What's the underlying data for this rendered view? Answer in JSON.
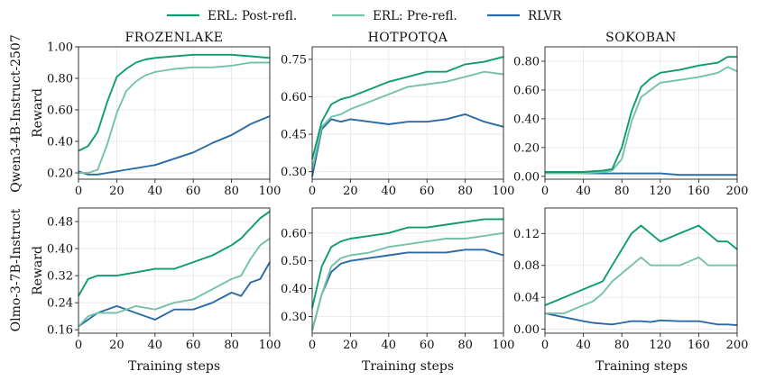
{
  "legend": [
    {
      "label": "ERL: Post-refl.",
      "color": "#0f9b72"
    },
    {
      "label": "ERL: Pre-refl.",
      "color": "#74c3a5"
    },
    {
      "label": "RLVR",
      "color": "#2b6aa6"
    }
  ],
  "columns": [
    "FROZENLAKE",
    "HOTPOTQA",
    "SOKOBAN"
  ],
  "rows": [
    "Qwen3-4B-Instruct-2507",
    "Olmo-3-7B-Instruct"
  ],
  "xlabel": "Training steps",
  "ylabel": "Reward",
  "chart_data": [
    {
      "type": "line",
      "row": 0,
      "col": 0,
      "title": "FROZENLAKE",
      "xlabel": "",
      "ylabel": "Reward",
      "xlim": [
        0,
        100
      ],
      "ylim": [
        0.16,
        1.0
      ],
      "xticks": [
        0,
        20,
        40,
        60,
        80,
        100
      ],
      "yticks": [
        0.2,
        0.4,
        0.6,
        0.8,
        1.0
      ],
      "ytick_labels": [
        "0.20",
        "0.40",
        "0.60",
        "0.80",
        "1.00"
      ],
      "x": [
        0,
        5,
        10,
        15,
        20,
        25,
        30,
        35,
        40,
        50,
        60,
        70,
        80,
        90,
        100
      ],
      "series": [
        {
          "name": "ERL: Post-refl.",
          "values": [
            0.34,
            0.37,
            0.46,
            0.65,
            0.81,
            0.86,
            0.9,
            0.92,
            0.93,
            0.94,
            0.95,
            0.95,
            0.95,
            0.94,
            0.93
          ]
        },
        {
          "name": "ERL: Pre-refl.",
          "values": [
            0.2,
            0.2,
            0.22,
            0.38,
            0.58,
            0.72,
            0.78,
            0.82,
            0.84,
            0.86,
            0.87,
            0.87,
            0.88,
            0.9,
            0.9
          ]
        },
        {
          "name": "RLVR",
          "values": [
            0.21,
            0.19,
            0.19,
            0.2,
            0.21,
            0.22,
            0.23,
            0.24,
            0.25,
            0.29,
            0.33,
            0.39,
            0.44,
            0.51,
            0.56
          ]
        }
      ]
    },
    {
      "type": "line",
      "row": 0,
      "col": 1,
      "title": "HOTPOTQA",
      "xlabel": "",
      "ylabel": "",
      "xlim": [
        0,
        100
      ],
      "ylim": [
        0.27,
        0.8
      ],
      "xticks": [
        0,
        20,
        40,
        60,
        80,
        100
      ],
      "yticks": [
        0.3,
        0.45,
        0.6,
        0.75
      ],
      "ytick_labels": [
        "0.30",
        "0.45",
        "0.60",
        "0.75"
      ],
      "x": [
        0,
        5,
        10,
        15,
        20,
        30,
        40,
        50,
        60,
        70,
        80,
        90,
        100
      ],
      "series": [
        {
          "name": "ERL: Post-refl.",
          "values": [
            0.35,
            0.5,
            0.57,
            0.59,
            0.6,
            0.63,
            0.66,
            0.68,
            0.7,
            0.7,
            0.73,
            0.74,
            0.76
          ]
        },
        {
          "name": "ERL: Pre-refl.",
          "values": [
            0.31,
            0.48,
            0.52,
            0.53,
            0.55,
            0.58,
            0.61,
            0.64,
            0.65,
            0.66,
            0.68,
            0.7,
            0.69
          ]
        },
        {
          "name": "RLVR",
          "values": [
            0.28,
            0.47,
            0.51,
            0.5,
            0.51,
            0.5,
            0.49,
            0.5,
            0.5,
            0.51,
            0.53,
            0.5,
            0.48
          ]
        }
      ]
    },
    {
      "type": "line",
      "row": 0,
      "col": 2,
      "title": "SOKOBAN",
      "xlabel": "",
      "ylabel": "",
      "xlim": [
        0,
        200
      ],
      "ylim": [
        -0.02,
        0.9
      ],
      "xticks": [
        0,
        40,
        80,
        120,
        160,
        200
      ],
      "yticks": [
        0.0,
        0.2,
        0.4,
        0.6,
        0.8
      ],
      "ytick_labels": [
        "0.00",
        "0.20",
        "0.40",
        "0.60",
        "0.80"
      ],
      "x": [
        0,
        20,
        40,
        60,
        70,
        80,
        90,
        100,
        110,
        120,
        140,
        160,
        180,
        190,
        200
      ],
      "series": [
        {
          "name": "ERL: Post-refl.",
          "values": [
            0.03,
            0.03,
            0.03,
            0.04,
            0.05,
            0.2,
            0.45,
            0.62,
            0.68,
            0.72,
            0.74,
            0.77,
            0.79,
            0.83,
            0.83
          ]
        },
        {
          "name": "ERL: Pre-refl.",
          "values": [
            0.02,
            0.02,
            0.02,
            0.03,
            0.04,
            0.12,
            0.38,
            0.55,
            0.6,
            0.65,
            0.67,
            0.69,
            0.72,
            0.76,
            0.73
          ]
        },
        {
          "name": "RLVR",
          "values": [
            0.02,
            0.02,
            0.02,
            0.02,
            0.02,
            0.02,
            0.02,
            0.02,
            0.02,
            0.02,
            0.01,
            0.01,
            0.01,
            0.01,
            0.01
          ]
        }
      ]
    },
    {
      "type": "line",
      "row": 1,
      "col": 0,
      "title": "",
      "xlabel": "Training steps",
      "ylabel": "Reward",
      "xlim": [
        0,
        100
      ],
      "ylim": [
        0.15,
        0.52
      ],
      "xticks": [
        0,
        20,
        40,
        60,
        80,
        100
      ],
      "yticks": [
        0.16,
        0.24,
        0.32,
        0.4,
        0.48
      ],
      "ytick_labels": [
        "0.16",
        "0.24",
        "0.32",
        "0.40",
        "0.48"
      ],
      "x": [
        0,
        5,
        10,
        20,
        30,
        40,
        50,
        60,
        70,
        80,
        85,
        90,
        95,
        100
      ],
      "series": [
        {
          "name": "ERL: Post-refl.",
          "values": [
            0.26,
            0.31,
            0.32,
            0.32,
            0.33,
            0.34,
            0.34,
            0.36,
            0.38,
            0.41,
            0.43,
            0.46,
            0.49,
            0.51
          ]
        },
        {
          "name": "ERL: Pre-refl.",
          "values": [
            0.17,
            0.2,
            0.21,
            0.21,
            0.23,
            0.22,
            0.24,
            0.25,
            0.28,
            0.31,
            0.32,
            0.37,
            0.41,
            0.43
          ]
        },
        {
          "name": "RLVR",
          "values": [
            0.17,
            0.19,
            0.21,
            0.23,
            0.21,
            0.19,
            0.22,
            0.22,
            0.24,
            0.27,
            0.26,
            0.3,
            0.31,
            0.36
          ]
        }
      ]
    },
    {
      "type": "line",
      "row": 1,
      "col": 1,
      "title": "",
      "xlabel": "Training steps",
      "ylabel": "",
      "xlim": [
        0,
        100
      ],
      "ylim": [
        0.24,
        0.69
      ],
      "xticks": [
        0,
        20,
        40,
        60,
        80,
        100
      ],
      "yticks": [
        0.3,
        0.4,
        0.5,
        0.6
      ],
      "ytick_labels": [
        "0.30",
        "0.40",
        "0.50",
        "0.60"
      ],
      "x": [
        0,
        5,
        10,
        15,
        20,
        30,
        40,
        50,
        60,
        70,
        80,
        90,
        100
      ],
      "series": [
        {
          "name": "ERL: Post-refl.",
          "values": [
            0.33,
            0.48,
            0.55,
            0.57,
            0.58,
            0.59,
            0.6,
            0.62,
            0.62,
            0.63,
            0.64,
            0.65,
            0.65
          ]
        },
        {
          "name": "ERL: Pre-refl.",
          "values": [
            0.25,
            0.38,
            0.48,
            0.51,
            0.52,
            0.53,
            0.55,
            0.56,
            0.57,
            0.58,
            0.58,
            0.59,
            0.6
          ]
        },
        {
          "name": "RLVR",
          "values": [
            0.25,
            0.38,
            0.46,
            0.49,
            0.5,
            0.51,
            0.52,
            0.53,
            0.53,
            0.53,
            0.54,
            0.54,
            0.52
          ]
        }
      ]
    },
    {
      "type": "line",
      "row": 1,
      "col": 2,
      "title": "",
      "xlabel": "Training steps",
      "ylabel": "",
      "xlim": [
        0,
        200
      ],
      "ylim": [
        -0.005,
        0.152
      ],
      "xticks": [
        0,
        40,
        80,
        120,
        160,
        200
      ],
      "yticks": [
        0.0,
        0.04,
        0.08,
        0.12
      ],
      "ytick_labels": [
        "0.00",
        "0.04",
        "0.08",
        "0.12"
      ],
      "x": [
        0,
        20,
        40,
        50,
        60,
        70,
        80,
        90,
        100,
        110,
        120,
        140,
        160,
        170,
        180,
        190,
        200
      ],
      "series": [
        {
          "name": "ERL: Post-refl.",
          "values": [
            0.03,
            0.04,
            0.05,
            0.055,
            0.06,
            0.08,
            0.1,
            0.12,
            0.13,
            0.12,
            0.11,
            0.12,
            0.13,
            0.12,
            0.11,
            0.11,
            0.1
          ]
        },
        {
          "name": "ERL: Pre-refl.",
          "values": [
            0.02,
            0.02,
            0.03,
            0.035,
            0.045,
            0.06,
            0.07,
            0.08,
            0.09,
            0.08,
            0.08,
            0.08,
            0.09,
            0.08,
            0.08,
            0.08,
            0.08
          ]
        },
        {
          "name": "RLVR",
          "values": [
            0.02,
            0.015,
            0.01,
            0.008,
            0.007,
            0.006,
            0.008,
            0.01,
            0.01,
            0.009,
            0.011,
            0.01,
            0.01,
            0.008,
            0.006,
            0.006,
            0.005
          ]
        }
      ]
    }
  ]
}
